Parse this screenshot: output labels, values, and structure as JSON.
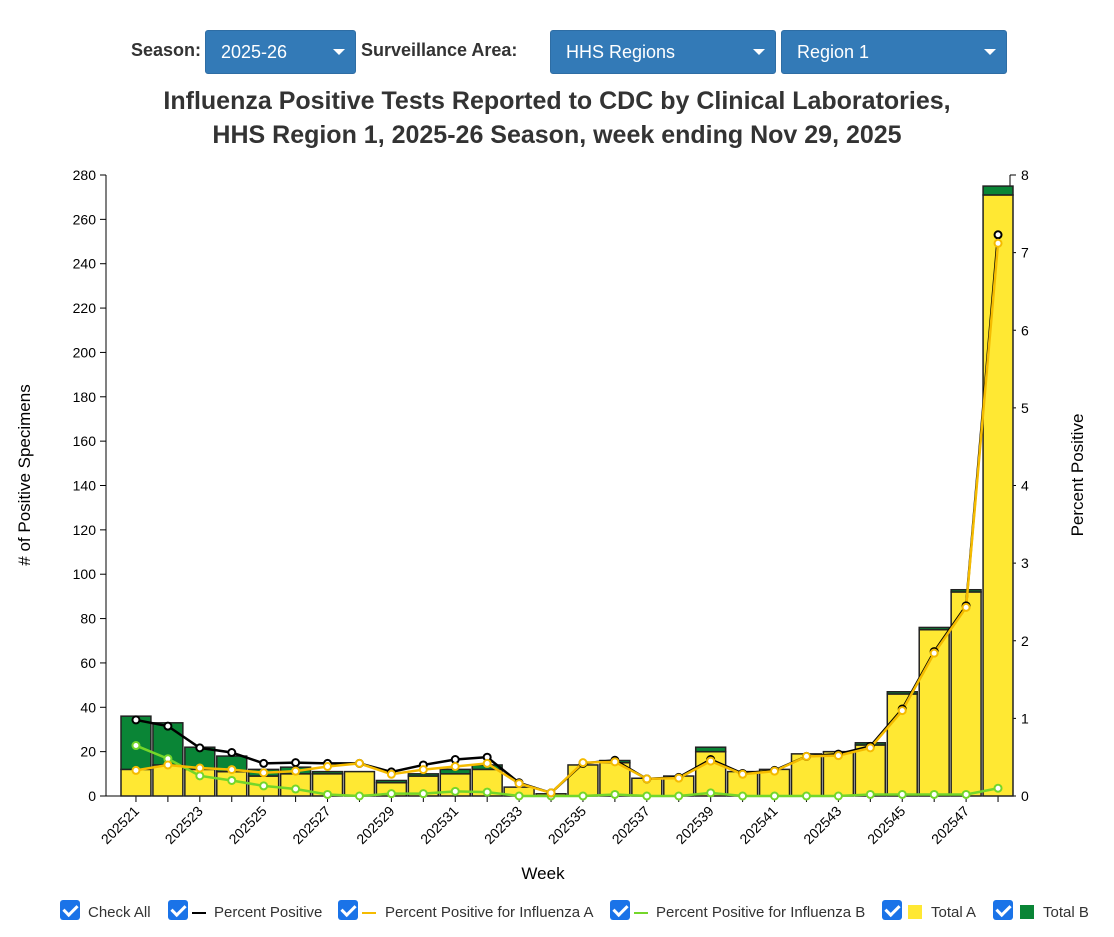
{
  "controls": {
    "season_label": "Season:",
    "season_value": "2025-26",
    "area_label": "Surveillance Area:",
    "area_value": "HHS Regions",
    "region_value": "Region 1"
  },
  "title": {
    "line1": "Influenza Positive Tests Reported to CDC by Clinical Laboratories,",
    "line2": "HHS Region 1, 2025-26 Season, week ending Nov 29, 2025"
  },
  "colors": {
    "total_a": "#ffe833",
    "total_b": "#0a8536",
    "pct_positive": "#000000",
    "pct_a": "#f5bb00",
    "pct_b": "#74d62a",
    "checkbox": "#1a73e8",
    "select_bg": "#337ab7"
  },
  "legend": [
    {
      "label": "Check All",
      "swatch": "none"
    },
    {
      "label": "Percent Positive",
      "swatch": "line",
      "color": "#000000"
    },
    {
      "label": "Percent Positive for Influenza A",
      "swatch": "line",
      "color": "#f5bb00"
    },
    {
      "label": "Percent Positive for Influenza B",
      "swatch": "line",
      "color": "#74d62a"
    },
    {
      "label": "Total A",
      "swatch": "box",
      "color": "#ffe833"
    },
    {
      "label": "Total B",
      "swatch": "box",
      "color": "#0a8536"
    }
  ],
  "chart_data": {
    "type": "bar",
    "stacked": true,
    "xlabel": "Week",
    "ylabel": "# of Positive Specimens",
    "y2label": "Percent Positive",
    "ylim": [
      0,
      280
    ],
    "y2lim": [
      0,
      8
    ],
    "yticks": [
      0,
      20,
      40,
      60,
      80,
      100,
      120,
      140,
      160,
      180,
      200,
      220,
      240,
      260,
      280
    ],
    "y2ticks": [
      0,
      1,
      2,
      3,
      4,
      5,
      6,
      7,
      8
    ],
    "categories": [
      "202521",
      "202522",
      "202523",
      "202524",
      "202525",
      "202526",
      "202527",
      "202528",
      "202529",
      "202530",
      "202531",
      "202532",
      "202533",
      "202534",
      "202535",
      "202536",
      "202537",
      "202538",
      "202539",
      "202540",
      "202541",
      "202542",
      "202543",
      "202544",
      "202545",
      "202546",
      "202547",
      "202548"
    ],
    "x_tick_labels": [
      "202521",
      "202523",
      "202525",
      "202527",
      "202529",
      "202531",
      "202533",
      "202535",
      "202537",
      "202539",
      "202541",
      "202543",
      "202545",
      "202547"
    ],
    "series": [
      {
        "name": "Total A",
        "kind": "bar",
        "values": [
          12,
          14,
          12,
          11,
          9,
          10,
          10,
          11,
          6,
          9,
          10,
          12,
          4,
          1,
          14,
          15,
          8,
          9,
          20,
          11,
          12,
          19,
          20,
          23,
          46,
          75,
          92,
          271
        ]
      },
      {
        "name": "Total B",
        "kind": "bar",
        "values": [
          24,
          19,
          10,
          7,
          3,
          3,
          1,
          0,
          1,
          1,
          2,
          2,
          0,
          0,
          0,
          1,
          0,
          0,
          2,
          0,
          0,
          0,
          0,
          1,
          1,
          1,
          1,
          4
        ]
      },
      {
        "name": "Percent Positive",
        "kind": "line",
        "axis": "right",
        "values": [
          0.98,
          0.9,
          0.62,
          0.56,
          0.42,
          0.43,
          0.42,
          0.42,
          0.31,
          0.4,
          0.47,
          0.5,
          0.17,
          0.04,
          0.42,
          0.46,
          0.22,
          0.24,
          0.47,
          0.29,
          0.33,
          0.51,
          0.54,
          0.64,
          1.12,
          1.86,
          2.45,
          7.23
        ]
      },
      {
        "name": "Percent Positive for Influenza A",
        "kind": "line",
        "axis": "right",
        "values": [
          0.33,
          0.4,
          0.36,
          0.34,
          0.3,
          0.32,
          0.38,
          0.42,
          0.28,
          0.34,
          0.38,
          0.42,
          0.16,
          0.04,
          0.43,
          0.44,
          0.22,
          0.23,
          0.45,
          0.28,
          0.32,
          0.51,
          0.52,
          0.62,
          1.1,
          1.84,
          2.43,
          7.12
        ]
      },
      {
        "name": "Percent Positive for Influenza B",
        "kind": "line",
        "axis": "right",
        "values": [
          0.65,
          0.48,
          0.26,
          0.2,
          0.13,
          0.09,
          0.02,
          0.0,
          0.03,
          0.03,
          0.06,
          0.05,
          0.0,
          0.0,
          0.0,
          0.02,
          0.0,
          0.0,
          0.04,
          0.0,
          0.0,
          0.0,
          0.0,
          0.02,
          0.02,
          0.02,
          0.02,
          0.1
        ]
      }
    ]
  }
}
